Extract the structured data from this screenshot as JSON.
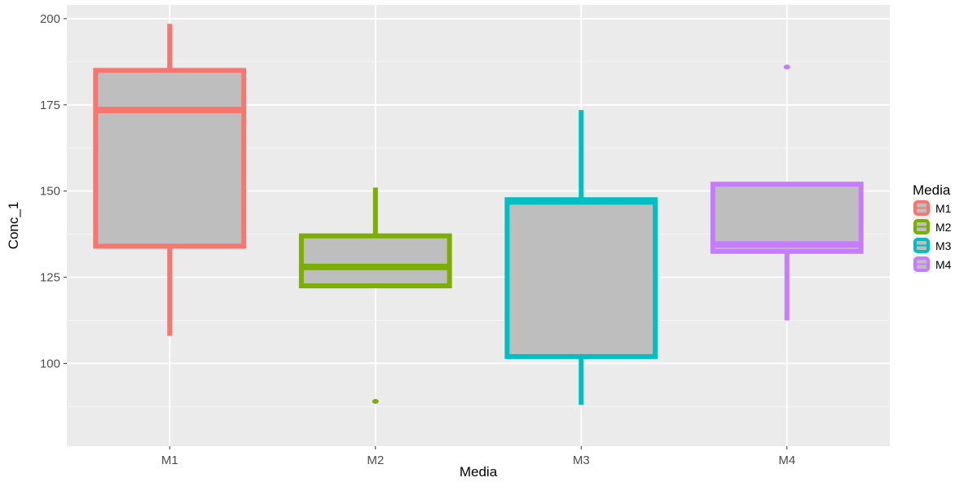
{
  "chart_data": {
    "type": "boxplot",
    "title": "",
    "xlabel": "Media",
    "ylabel": "Conc_1",
    "ylim": [
      76,
      204
    ],
    "yticks": [
      100,
      125,
      150,
      175,
      200
    ],
    "grid": true,
    "background": "#ebebeb",
    "box_fill": "#bebebe",
    "categories": [
      "M1",
      "M2",
      "M3",
      "M4"
    ],
    "series": [
      {
        "name": "M1",
        "color": "#f8766d",
        "whisker_low": 108,
        "q1": 134,
        "median": 173.5,
        "q3": 185,
        "whisker_high": 198.5,
        "outliers": []
      },
      {
        "name": "M2",
        "color": "#7cae00",
        "whisker_low": 122.5,
        "q1": 122.5,
        "median": 128,
        "q3": 137,
        "whisker_high": 151,
        "outliers": [
          89
        ]
      },
      {
        "name": "M3",
        "color": "#00bfc4",
        "whisker_low": 88,
        "q1": 102,
        "median": 147,
        "q3": 147.5,
        "whisker_high": 173.5,
        "outliers": []
      },
      {
        "name": "M4",
        "color": "#c77cff",
        "whisker_low": 112.5,
        "q1": 132.5,
        "median": 134.5,
        "q3": 152,
        "whisker_high": 152,
        "outliers": [
          186
        ]
      }
    ],
    "legend": {
      "title": "Media",
      "position": "right",
      "entries": [
        "M1",
        "M2",
        "M3",
        "M4"
      ]
    }
  }
}
